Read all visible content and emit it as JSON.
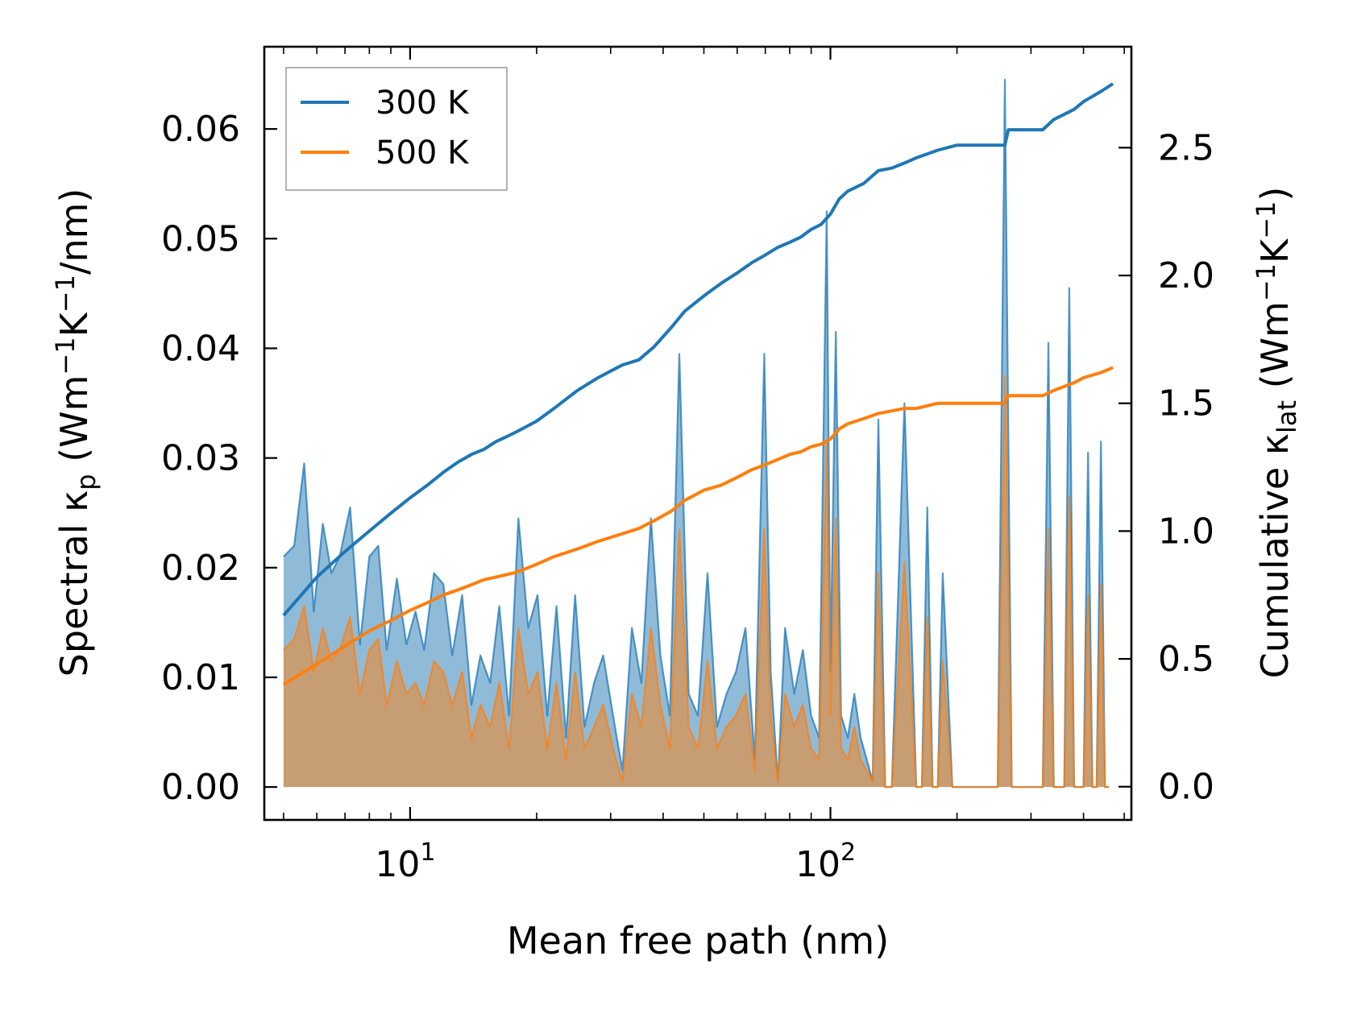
{
  "chart_data": {
    "type": "line",
    "xscale": "log",
    "xlabel": "Mean free path (nm)",
    "ylabel_left": {
      "text": "Spectral κ",
      "sub": "p",
      "units": " (Wm",
      "sup1": "−1",
      "k": "K",
      "sup2": "−1",
      "tail": "/nm)"
    },
    "ylabel_right": {
      "text": "Cumulative κ",
      "sub": "lat",
      "units": " (Wm",
      "sup1": "−1",
      "k": "K",
      "sup2": "−1",
      "tail": ")"
    },
    "xlim": [
      4.5,
      520
    ],
    "ylim_left": [
      -0.003,
      0.0675
    ],
    "ylim_right": [
      -0.13,
      2.895
    ],
    "x_ticks": [
      {
        "value": 10,
        "base": "10",
        "exp": "1"
      },
      {
        "value": 100,
        "base": "10",
        "exp": "2"
      }
    ],
    "y_left_ticks": [
      "0.00",
      "0.01",
      "0.02",
      "0.03",
      "0.04",
      "0.05",
      "0.06"
    ],
    "y_left_tick_values": [
      0,
      0.01,
      0.02,
      0.03,
      0.04,
      0.05,
      0.06
    ],
    "y_right_ticks": [
      "0.0",
      "0.5",
      "1.0",
      "1.5",
      "2.0",
      "2.5"
    ],
    "y_right_tick_values": [
      0,
      0.5,
      1.0,
      1.5,
      2.0,
      2.5
    ],
    "legend": {
      "position": "top-left",
      "entries": [
        {
          "label": "300 K",
          "color": "#1f77b4"
        },
        {
          "label": "500 K",
          "color": "#ff7f0e"
        }
      ]
    },
    "series": [
      {
        "name": "300 K spectral",
        "axis": "left",
        "style": "filled",
        "color": "#1f77b4",
        "x": [
          5.0,
          5.3,
          5.6,
          5.9,
          6.2,
          6.5,
          6.8,
          7.2,
          7.6,
          8.0,
          8.4,
          8.8,
          9.3,
          9.8,
          10.3,
          10.8,
          11.4,
          12.0,
          12.6,
          13.3,
          14.0,
          14.7,
          15.5,
          16.3,
          17.2,
          18.1,
          19.1,
          20.1,
          21.2,
          22.3,
          23.5,
          24.7,
          26.0,
          27.4,
          28.8,
          30.4,
          32.0,
          33.7,
          35.5,
          37.4,
          39.4,
          41.5,
          43.7,
          46.0,
          48.4,
          51.0,
          53.7,
          56.6,
          59.6,
          62.8,
          66.1,
          69.6,
          72.1,
          75.0,
          78.0,
          82.0,
          86.0,
          90.0,
          94.0,
          98.0,
          100.0,
          103.0,
          106.0,
          110.0,
          114.0,
          118.0,
          122.0,
          126.0,
          130.0,
          135.0,
          140.0,
          150.0,
          160.0,
          165.0,
          170.0,
          175.0,
          180.0,
          185.0,
          195.0,
          200.0,
          250.0,
          260.0,
          270.0,
          280.0,
          320.0,
          330.0,
          340.0,
          360.0,
          370.0,
          380.0,
          390.0,
          400.0,
          410.0,
          420.0,
          430.0,
          440.0,
          450.0,
          460.0
        ],
        "y": [
          0.021,
          0.022,
          0.0295,
          0.016,
          0.024,
          0.0195,
          0.021,
          0.0255,
          0.013,
          0.021,
          0.022,
          0.0125,
          0.019,
          0.013,
          0.016,
          0.0125,
          0.0195,
          0.0185,
          0.012,
          0.0175,
          0.0075,
          0.012,
          0.0095,
          0.0165,
          0.0065,
          0.0245,
          0.0145,
          0.0175,
          0.0065,
          0.0165,
          0.0045,
          0.0175,
          0.0055,
          0.0095,
          0.012,
          0.0065,
          0.0015,
          0.0145,
          0.0095,
          0.0245,
          0.012,
          0.0065,
          0.0395,
          0.0085,
          0.0065,
          0.0195,
          0.0055,
          0.0085,
          0.0105,
          0.0145,
          0.0025,
          0.0395,
          0.0105,
          0.0005,
          0.0145,
          0.0085,
          0.0125,
          0.0065,
          0.0045,
          0.0525,
          0.0105,
          0.0415,
          0.0065,
          0.0045,
          0.0085,
          0.0045,
          0.0025,
          0.0005,
          0.0335,
          0.0,
          0.0,
          0.035,
          0.0,
          0.0,
          0.0255,
          0.0,
          0.0,
          0.0195,
          0.0,
          0.0,
          0.0,
          0.0645,
          0.0,
          0.0,
          0.0,
          0.0405,
          0.0,
          0.0,
          0.0455,
          0.0,
          0.0,
          0.0,
          0.0305,
          0.0,
          0.0,
          0.0315,
          0.0,
          0.0
        ]
      },
      {
        "name": "500 K spectral",
        "axis": "left",
        "style": "filled",
        "color": "#ff7f0e",
        "x": [
          5.0,
          5.3,
          5.6,
          5.9,
          6.2,
          6.5,
          6.8,
          7.2,
          7.6,
          8.0,
          8.4,
          8.8,
          9.3,
          9.8,
          10.3,
          10.8,
          11.4,
          12.0,
          12.6,
          13.3,
          14.0,
          14.7,
          15.5,
          16.3,
          17.2,
          18.1,
          19.1,
          20.1,
          21.2,
          22.3,
          23.5,
          24.7,
          26.0,
          27.4,
          28.8,
          30.4,
          32.0,
          33.7,
          35.5,
          37.4,
          39.4,
          41.5,
          43.7,
          46.0,
          48.4,
          51.0,
          53.7,
          56.6,
          59.6,
          62.8,
          66.1,
          69.6,
          72.1,
          75.0,
          78.0,
          82.0,
          86.0,
          90.0,
          94.0,
          98.0,
          100.0,
          103.0,
          106.0,
          110.0,
          114.0,
          118.0,
          122.0,
          126.0,
          130.0,
          135.0,
          140.0,
          150.0,
          160.0,
          165.0,
          170.0,
          175.0,
          180.0,
          185.0,
          195.0,
          200.0,
          250.0,
          260.0,
          270.0,
          280.0,
          320.0,
          330.0,
          340.0,
          360.0,
          370.0,
          380.0,
          390.0,
          400.0,
          410.0,
          420.0,
          430.0,
          440.0,
          450.0,
          460.0
        ],
        "y": [
          0.0125,
          0.0135,
          0.0165,
          0.0105,
          0.0145,
          0.0115,
          0.0125,
          0.0155,
          0.0085,
          0.0125,
          0.0135,
          0.0075,
          0.0115,
          0.0085,
          0.0095,
          0.0075,
          0.0115,
          0.0105,
          0.0075,
          0.0105,
          0.0045,
          0.0075,
          0.0055,
          0.0095,
          0.0035,
          0.0145,
          0.0085,
          0.0105,
          0.0035,
          0.0095,
          0.0025,
          0.0105,
          0.0035,
          0.0055,
          0.0075,
          0.0035,
          0.0005,
          0.0085,
          0.0055,
          0.0145,
          0.0075,
          0.0035,
          0.0235,
          0.0055,
          0.0035,
          0.0115,
          0.0035,
          0.0055,
          0.0065,
          0.0085,
          0.0015,
          0.0235,
          0.0065,
          0.0005,
          0.0085,
          0.0055,
          0.0075,
          0.0035,
          0.0025,
          0.0315,
          0.0065,
          0.0245,
          0.0035,
          0.0025,
          0.0055,
          0.0025,
          0.0015,
          0.0005,
          0.0195,
          0.0,
          0.0,
          0.0205,
          0.0,
          0.0,
          0.0155,
          0.0,
          0.0,
          0.0115,
          0.0,
          0.0,
          0.0,
          0.0375,
          0.0,
          0.0,
          0.0,
          0.0235,
          0.0,
          0.0,
          0.0265,
          0.0,
          0.0,
          0.0,
          0.0175,
          0.0,
          0.0,
          0.0185,
          0.0,
          0.0
        ]
      },
      {
        "name": "300 K",
        "axis": "right",
        "style": "line",
        "color": "#1f77b4",
        "x": [
          5.0,
          6.0,
          7.0,
          8.0,
          9.0,
          10.0,
          11.0,
          12.0,
          13.0,
          14.0,
          15.0,
          16.0,
          17.0,
          18.0,
          20.0,
          22.0,
          25.0,
          28.0,
          32.0,
          35.0,
          38.0,
          42.0,
          45.0,
          50.0,
          55.0,
          60.0,
          65.0,
          70.0,
          75.0,
          80.0,
          85.0,
          90.0,
          95.0,
          100.0,
          105.0,
          110.0,
          120.0,
          130.0,
          140.0,
          150.0,
          160.0,
          180.0,
          200.0,
          260.0,
          265.0,
          320.0,
          340.0,
          380.0,
          400.0,
          440.0,
          470.0
        ],
        "y": [
          0.67,
          0.82,
          0.92,
          1.0,
          1.07,
          1.13,
          1.18,
          1.23,
          1.27,
          1.3,
          1.32,
          1.35,
          1.37,
          1.39,
          1.43,
          1.48,
          1.55,
          1.6,
          1.65,
          1.67,
          1.72,
          1.8,
          1.86,
          1.92,
          1.97,
          2.01,
          2.05,
          2.08,
          2.11,
          2.13,
          2.15,
          2.18,
          2.2,
          2.24,
          2.3,
          2.33,
          2.36,
          2.41,
          2.42,
          2.44,
          2.46,
          2.49,
          2.51,
          2.51,
          2.57,
          2.57,
          2.61,
          2.65,
          2.68,
          2.72,
          2.75
        ]
      },
      {
        "name": "500 K",
        "axis": "right",
        "style": "line",
        "color": "#ff7f0e",
        "x": [
          5.0,
          6.0,
          7.0,
          8.0,
          9.0,
          10.0,
          11.0,
          12.0,
          13.0,
          14.0,
          15.0,
          16.0,
          17.0,
          18.0,
          20.0,
          22.0,
          25.0,
          28.0,
          32.0,
          35.0,
          38.0,
          42.0,
          45.0,
          50.0,
          55.0,
          60.0,
          65.0,
          70.0,
          75.0,
          80.0,
          85.0,
          90.0,
          95.0,
          100.0,
          105.0,
          110.0,
          120.0,
          130.0,
          140.0,
          150.0,
          160.0,
          180.0,
          200.0,
          260.0,
          265.0,
          320.0,
          340.0,
          380.0,
          400.0,
          440.0,
          470.0
        ],
        "y": [
          0.4,
          0.48,
          0.55,
          0.61,
          0.65,
          0.69,
          0.72,
          0.75,
          0.77,
          0.79,
          0.81,
          0.82,
          0.83,
          0.84,
          0.87,
          0.9,
          0.93,
          0.96,
          0.99,
          1.01,
          1.04,
          1.08,
          1.12,
          1.16,
          1.18,
          1.21,
          1.24,
          1.26,
          1.28,
          1.3,
          1.31,
          1.33,
          1.34,
          1.36,
          1.4,
          1.42,
          1.44,
          1.46,
          1.47,
          1.48,
          1.48,
          1.5,
          1.5,
          1.5,
          1.53,
          1.53,
          1.55,
          1.58,
          1.6,
          1.62,
          1.64
        ]
      }
    ]
  }
}
